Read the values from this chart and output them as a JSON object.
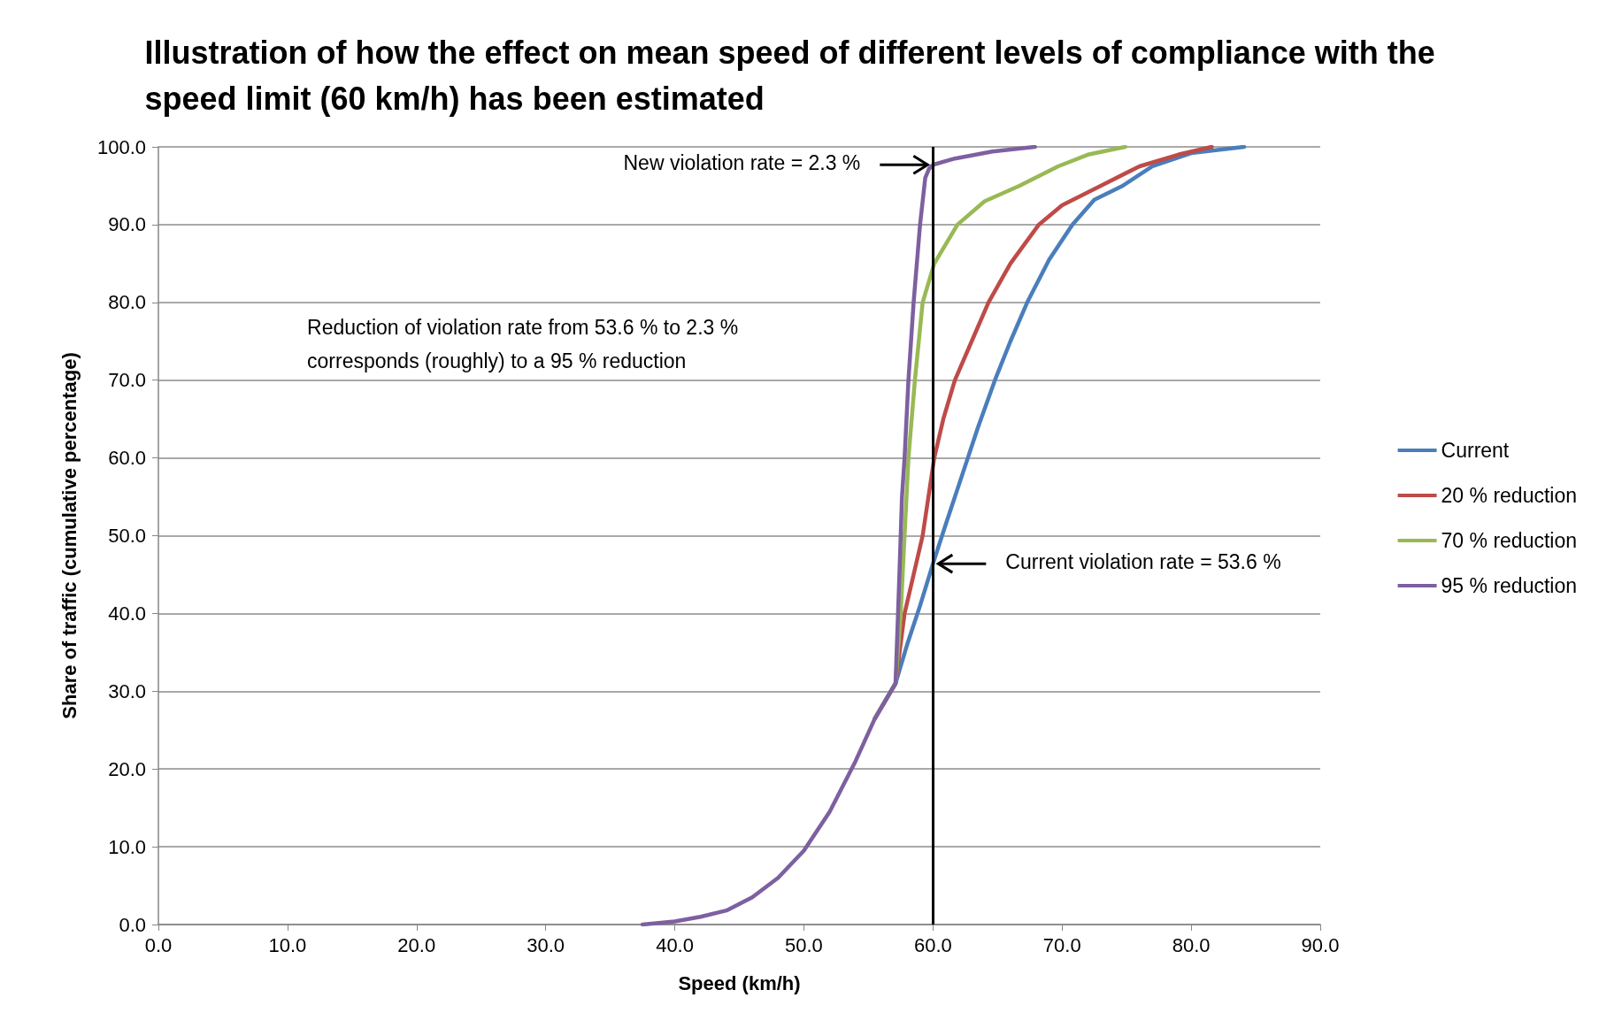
{
  "chart_data": {
    "type": "line",
    "title": "Illustration of how the effect on mean speed of different levels of compliance with the speed limit (60 km/h) has been estimated",
    "xlabel": "Speed (km/h)",
    "ylabel": "Share of traffic (cumulative percentage)",
    "xlim": [
      0,
      90
    ],
    "ylim": [
      0,
      100
    ],
    "xticks": [
      {
        "value": 0,
        "label": "0.0"
      },
      {
        "value": 10,
        "label": "10.0"
      },
      {
        "value": 20,
        "label": "20.0"
      },
      {
        "value": 30,
        "label": "30.0"
      },
      {
        "value": 40,
        "label": "40.0"
      },
      {
        "value": 50,
        "label": "50.0"
      },
      {
        "value": 60,
        "label": "60.0"
      },
      {
        "value": 70,
        "label": "70.0"
      },
      {
        "value": 80,
        "label": "80.0"
      },
      {
        "value": 90,
        "label": "90.0"
      }
    ],
    "yticks": [
      {
        "value": 0,
        "label": "0.0"
      },
      {
        "value": 10,
        "label": "10.0"
      },
      {
        "value": 20,
        "label": "20.0"
      },
      {
        "value": 30,
        "label": "30.0"
      },
      {
        "value": 40,
        "label": "40.0"
      },
      {
        "value": 50,
        "label": "50.0"
      },
      {
        "value": 60,
        "label": "60.0"
      },
      {
        "value": 70,
        "label": "70.0"
      },
      {
        "value": 80,
        "label": "80.0"
      },
      {
        "value": 90,
        "label": "90.0"
      },
      {
        "value": 100,
        "label": "100.0"
      }
    ],
    "grid": "y",
    "legend": "right",
    "marker": "none",
    "line_style": "solid",
    "series": [
      {
        "name": "Current",
        "color": "#4a7ebb",
        "x": [
          55.5,
          57.1,
          58,
          59,
          60,
          61,
          62,
          62.7,
          63.5,
          64.8,
          66,
          67.3,
          69,
          70.8,
          72.5,
          74.7,
          77,
          80,
          84.1
        ],
        "values": [
          26.5,
          31,
          36,
          41,
          46.4,
          51.5,
          56.5,
          60,
          64,
          70,
          75,
          80,
          85.5,
          90,
          93.2,
          95,
          97.5,
          99.2,
          100
        ]
      },
      {
        "name": "20 % reduction",
        "color": "#be4b48",
        "x": [
          55.5,
          57.1,
          57.8,
          58.5,
          59.2,
          60.1,
          60.8,
          61.7,
          63,
          64.3,
          66,
          68.2,
          70,
          73,
          76,
          79,
          81.6
        ],
        "values": [
          26.5,
          31,
          40,
          45,
          50,
          60,
          65,
          70,
          75,
          80,
          85,
          90,
          92.5,
          95,
          97.5,
          99,
          100
        ]
      },
      {
        "name": "70 % reduction",
        "color": "#98b954",
        "x": [
          55.5,
          57.1,
          57.5,
          57.8,
          58.1,
          58.6,
          59.2,
          60.1,
          61.9,
          64,
          66.7,
          69.7,
          72,
          74.9
        ],
        "values": [
          26.5,
          31,
          40,
          50,
          60,
          70,
          80,
          85,
          90,
          93,
          95,
          97.5,
          99,
          100
        ]
      },
      {
        "name": "95 % reduction",
        "color": "#7d60a0",
        "x": [
          37.5,
          40,
          42,
          44,
          46,
          48,
          50,
          52,
          54,
          55.5,
          57.1,
          57.4,
          57.6,
          57.8,
          58.1,
          58.5,
          59,
          59.4,
          59.7,
          60,
          61.7,
          64.6,
          67.9
        ],
        "values": [
          0,
          0.4,
          1,
          1.8,
          3.5,
          6,
          9.5,
          14.5,
          21,
          26.5,
          31,
          45,
          55,
          60,
          70,
          80,
          90,
          96,
          97.2,
          97.7,
          98.5,
          99.4,
          100
        ]
      }
    ],
    "ref_lines": [
      {
        "axis": "x",
        "value": 60,
        "color": "#000000",
        "line_style": "solid"
      }
    ],
    "annotations": [
      {
        "text": "New violation rate = 2.3 %",
        "x": 60,
        "y": 97.7
      },
      {
        "text": "Current violation rate = 53.6 %",
        "x": 60,
        "y": 46.4
      },
      "Reduction of violation rate from 53.6 % to 2.3 % corresponds (roughly) to a 95 % reduction"
    ]
  }
}
